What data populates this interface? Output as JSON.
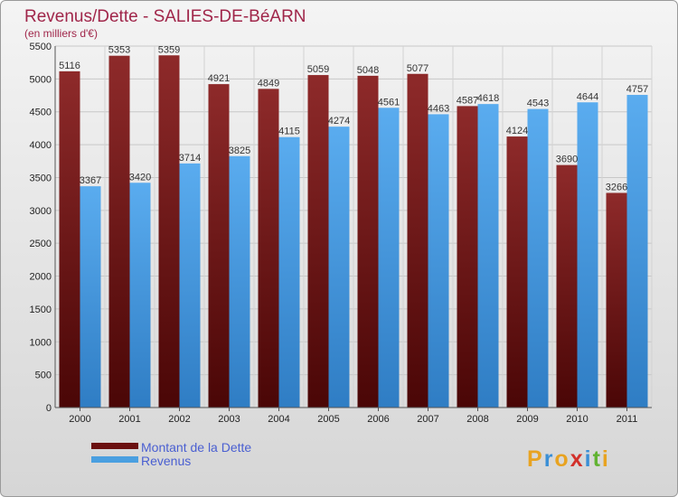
{
  "chart_data": {
    "type": "bar",
    "title": "Revenus/Dette - SALIES-DE-BéARN",
    "subtitle": "(en milliers d'€)",
    "categories": [
      "2000",
      "2001",
      "2002",
      "2003",
      "2004",
      "2005",
      "2006",
      "2007",
      "2008",
      "2009",
      "2010",
      "2011"
    ],
    "series": [
      {
        "name": "Montant de la Dette",
        "color": "#7a1a1a",
        "values": [
          5116,
          5353,
          5359,
          4921,
          4849,
          5059,
          5048,
          5077,
          4587,
          4124,
          3690,
          3266
        ]
      },
      {
        "name": "Revenus",
        "color": "#4a9fe0",
        "values": [
          3367,
          3420,
          3714,
          3825,
          4115,
          4274,
          4561,
          4463,
          4618,
          4543,
          4644,
          4757
        ]
      }
    ],
    "ylim": [
      0,
      5500
    ],
    "yticks": [
      0,
      500,
      1000,
      1500,
      2000,
      2500,
      3000,
      3500,
      4000,
      4500,
      5000,
      5500
    ],
    "grid": true,
    "legend_position": "bottom-left"
  },
  "branding": {
    "logo_letters": [
      {
        "ch": "P",
        "color": "#e8a321"
      },
      {
        "ch": "r",
        "color": "#3a8fd6"
      },
      {
        "ch": "o",
        "color": "#e8a321"
      },
      {
        "ch": "x",
        "color": "#d2302a"
      },
      {
        "ch": "i",
        "color": "#3a8fd6"
      },
      {
        "ch": "t",
        "color": "#62b332"
      },
      {
        "ch": "i",
        "color": "#e8a321"
      }
    ]
  }
}
